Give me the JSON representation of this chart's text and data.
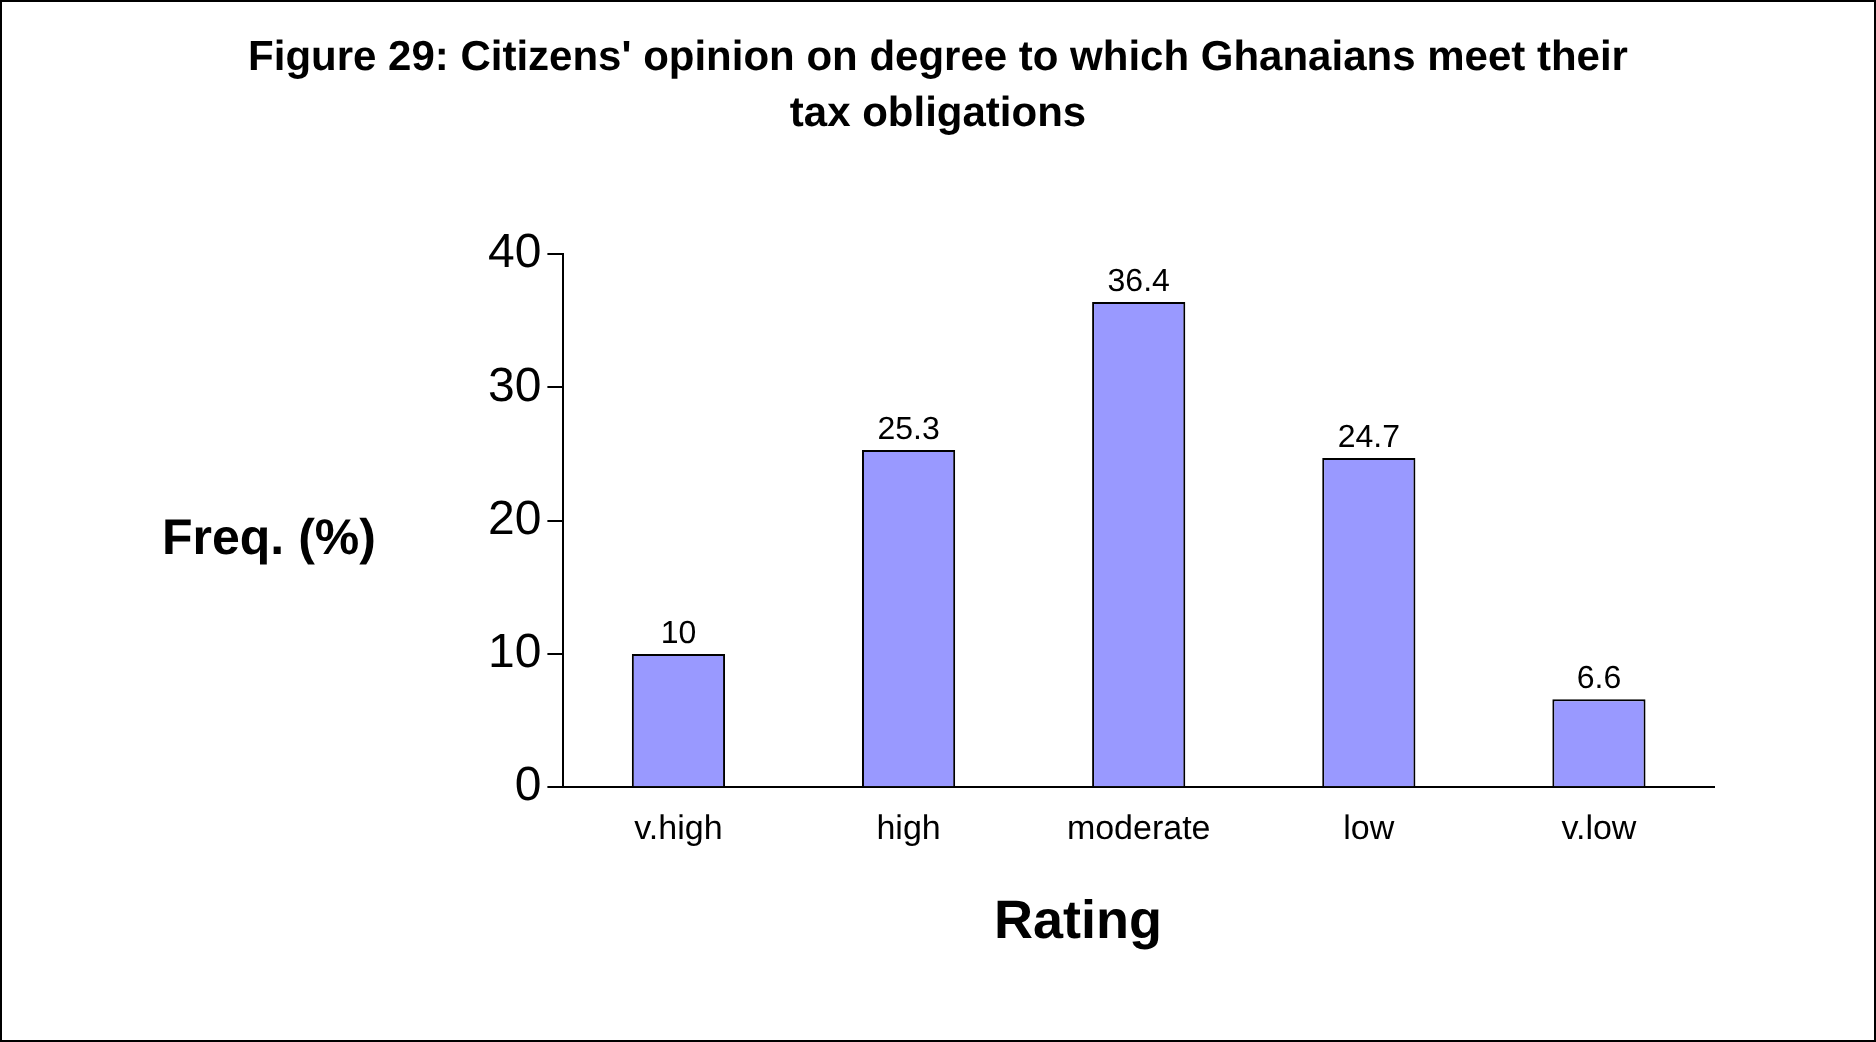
{
  "chart_data": {
    "type": "bar",
    "title": "Figure 29: Citizens' opinion on degree to which Ghanaians meet their tax obligations",
    "xlabel": "Rating",
    "ylabel": "Freq. (%)",
    "categories": [
      "v.high",
      "high",
      "moderate",
      "low",
      "v.low"
    ],
    "values": [
      10,
      25.3,
      36.4,
      24.7,
      6.6
    ],
    "color": "#9999ff",
    "ylim": [
      0,
      40
    ],
    "yticks": [
      0,
      10,
      20,
      30,
      40
    ],
    "grid": false,
    "legend": false,
    "data_labels": true
  }
}
